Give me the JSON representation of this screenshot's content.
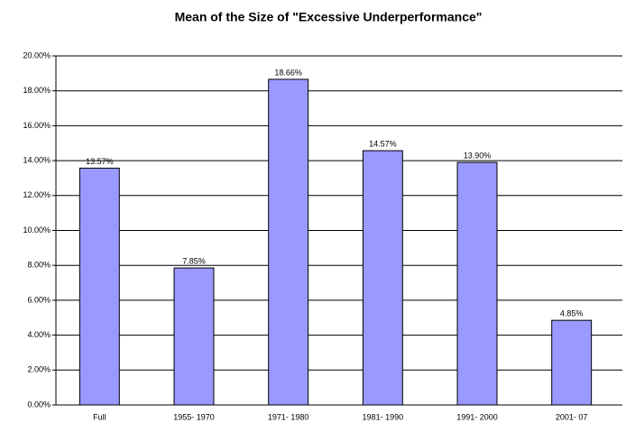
{
  "chart_data": {
    "type": "bar",
    "title": "Mean of the Size of \"Excessive Underperformance\"",
    "categories": [
      "Full",
      "1955- 1970",
      "1971- 1980",
      "1981- 1990",
      "1991- 2000",
      "2001- 07"
    ],
    "values": [
      13.57,
      7.85,
      18.66,
      14.57,
      13.9,
      4.85
    ],
    "value_labels": [
      "13.57%",
      "7.85%",
      "18.66%",
      "14.57%",
      "13.90%",
      "4.85%"
    ],
    "color": "#9999ff",
    "ylim": [
      0,
      20
    ],
    "yticks": [
      {
        "value": 0,
        "label": "0.00%"
      },
      {
        "value": 2,
        "label": "2.00%"
      },
      {
        "value": 4,
        "label": "4.00%"
      },
      {
        "value": 6,
        "label": "6.00%"
      },
      {
        "value": 8,
        "label": "8.00%"
      },
      {
        "value": 10,
        "label": "10.00%"
      },
      {
        "value": 12,
        "label": "12.00%"
      },
      {
        "value": 14,
        "label": "14.00%"
      },
      {
        "value": 16,
        "label": "16.00%"
      },
      {
        "value": 18,
        "label": "18.00%"
      },
      {
        "value": 20,
        "label": "20.00%"
      }
    ],
    "grid": true
  }
}
